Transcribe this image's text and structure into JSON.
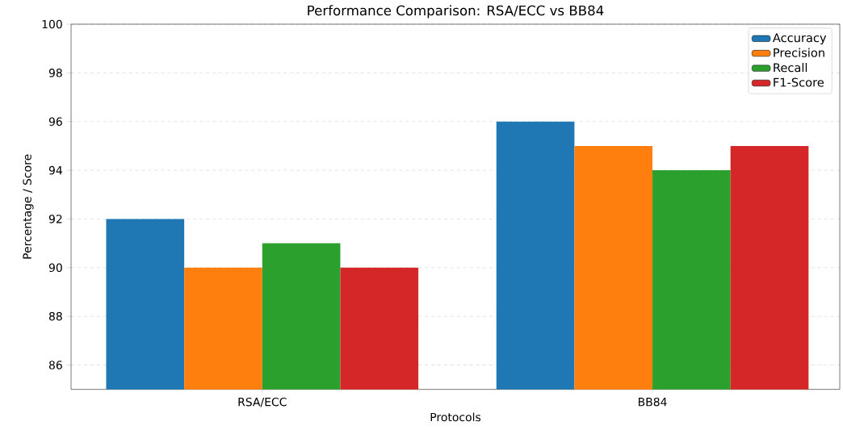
{
  "chart_data": {
    "type": "bar",
    "title": "Performance Comparison: RSA/ECC vs BB84",
    "xlabel": "Protocols",
    "ylabel": "Percentage / Score",
    "categories": [
      "RSA/ECC",
      "BB84"
    ],
    "series": [
      {
        "name": "Accuracy",
        "color": "#1f77b4",
        "values": [
          92,
          96
        ]
      },
      {
        "name": "Precision",
        "color": "#ff7f0e",
        "values": [
          90,
          95
        ]
      },
      {
        "name": "Recall",
        "color": "#2ca02c",
        "values": [
          91,
          94
        ]
      },
      {
        "name": "F1-Score",
        "color": "#d62728",
        "values": [
          90,
          95
        ]
      }
    ],
    "ylim": [
      85,
      100
    ],
    "yticks": [
      86,
      88,
      90,
      92,
      94,
      96,
      98,
      100
    ],
    "grid": "y",
    "legend": "top right"
  }
}
